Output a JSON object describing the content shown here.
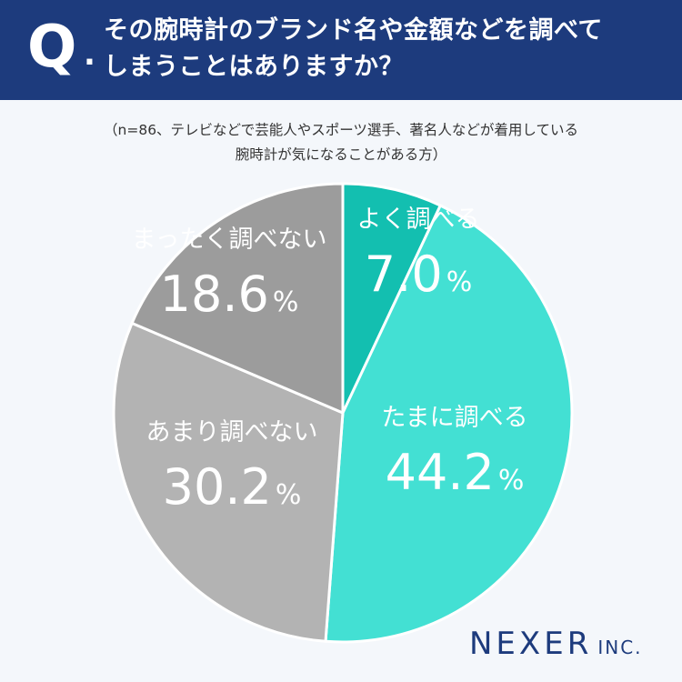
{
  "header": {
    "q_letter": "Q",
    "q_dot": ".",
    "question_line1": "その腕時計のブランド名や金額などを調べて",
    "question_line2": "しまうことはありますか？"
  },
  "note": {
    "line1": "（n=86、テレビなどで芸能人やスポーツ選手、著名人などが着用している",
    "line2": "腕時計が気になることがある方）"
  },
  "colors": {
    "header_bg": "#1d3b7d",
    "background": "#f4f7fb",
    "brand": "#1d3b7d"
  },
  "chart_data": {
    "type": "pie",
    "start_angle_deg": 0,
    "direction": "clockwise",
    "slices": [
      {
        "label": "よく調べる",
        "value": 7.0,
        "value_text": "7.0",
        "unit": "%",
        "color": "#13bfb0"
      },
      {
        "label": "たまに調べる",
        "value": 44.2,
        "value_text": "44.2",
        "unit": "%",
        "color": "#43e0d3"
      },
      {
        "label": "あまり調べない",
        "value": 30.2,
        "value_text": "30.2",
        "unit": "%",
        "color": "#b3b3b3"
      },
      {
        "label": "まったく調べない",
        "value": 18.6,
        "value_text": "18.6",
        "unit": "%",
        "color": "#9c9c9c"
      }
    ]
  },
  "brand": {
    "name": "NEXER",
    "suffix": "INC."
  }
}
